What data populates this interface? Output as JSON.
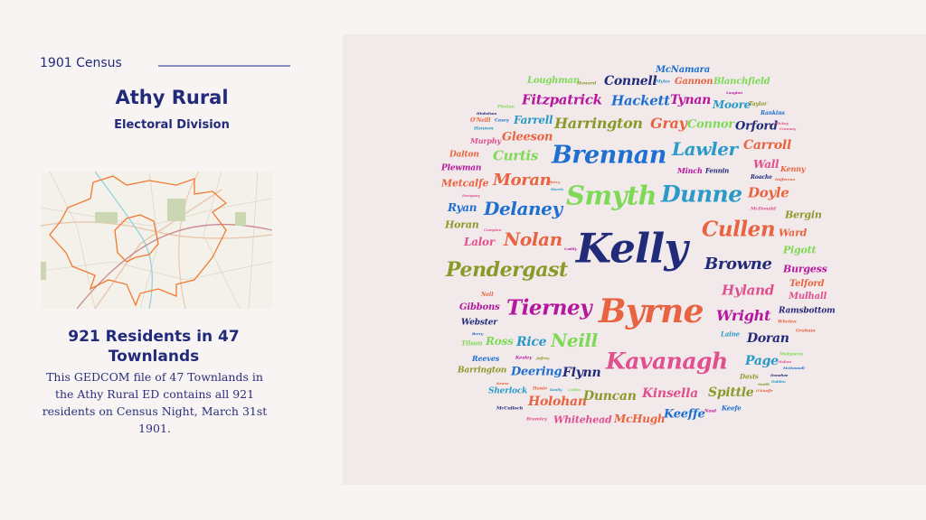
{
  "header": {
    "kicker": "1901 Census",
    "title": "Athy Rural",
    "subtitle": "Electoral Division"
  },
  "map": {
    "icon": "townland-boundary-map",
    "boundary_color": "#f4792f"
  },
  "summary": {
    "heading": "921 Residents in 47 Townlands",
    "description": "This GEDCOM file of  47 Townlands in the Athy Rural ED contains all 921 residents on Census Night, March 31st 1901."
  },
  "colors": {
    "navy": "#222a7a",
    "blue": "#1e6fd0",
    "teal": "#2a9ac8",
    "green": "#7ed957",
    "olive": "#8a9a2a",
    "orange": "#e8633f",
    "pink": "#e0508f",
    "magenta": "#b5179e",
    "background": "#f2eaea"
  },
  "word_cloud": [
    {
      "text": "McNamara",
      "color": "#1e6fd0"
    },
    {
      "text": "Loughman",
      "color": "#7ed957"
    },
    {
      "text": "Howard",
      "color": "#8a9a2a"
    },
    {
      "text": "Connell",
      "color": "#222a7a"
    },
    {
      "text": "Mylas",
      "color": "#2a9ac8"
    },
    {
      "text": "Gannon",
      "color": "#e8633f"
    },
    {
      "text": "Blanchfield",
      "color": "#7ed957"
    },
    {
      "text": "Fitzpatrick",
      "color": "#b5179e"
    },
    {
      "text": "Hackett",
      "color": "#1e6fd0"
    },
    {
      "text": "Tynan",
      "color": "#b5179e"
    },
    {
      "text": "Langton",
      "color": "#b5179e"
    },
    {
      "text": "Moore",
      "color": "#2a9ac8"
    },
    {
      "text": "Taylor",
      "color": "#8a9a2a"
    },
    {
      "text": "Phelan",
      "color": "#7ed957"
    },
    {
      "text": "Hinkelson",
      "color": "#222a7a"
    },
    {
      "text": "Rankins",
      "color": "#1e6fd0"
    },
    {
      "text": "O'Neill",
      "color": "#e8633f"
    },
    {
      "text": "Casey",
      "color": "#1e6fd0"
    },
    {
      "text": "Farrell",
      "color": "#2a9ac8"
    },
    {
      "text": "Harrington",
      "color": "#8a9a2a"
    },
    {
      "text": "Gray",
      "color": "#e8633f"
    },
    {
      "text": "Connor",
      "color": "#7ed957"
    },
    {
      "text": "Orford",
      "color": "#222a7a"
    },
    {
      "text": "Hickey",
      "color": "#e0508f"
    },
    {
      "text": "Cranney",
      "color": "#e0508f"
    },
    {
      "text": "Hannon",
      "color": "#2a9ac8"
    },
    {
      "text": "Murphy",
      "color": "#e0508f"
    },
    {
      "text": "Gleeson",
      "color": "#e8633f"
    },
    {
      "text": "Brennan",
      "color": "#1e6fd0"
    },
    {
      "text": "Lawler",
      "color": "#2a9ac8"
    },
    {
      "text": "Carroll",
      "color": "#e8633f"
    },
    {
      "text": "Dalton",
      "color": "#e8633f"
    },
    {
      "text": "Curtis",
      "color": "#7ed957"
    },
    {
      "text": "Plewman",
      "color": "#b5179e"
    },
    {
      "text": "Minch",
      "color": "#b5179e"
    },
    {
      "text": "Fennin",
      "color": "#222a7a"
    },
    {
      "text": "Wall",
      "color": "#e0508f"
    },
    {
      "text": "Kenny",
      "color": "#e8633f"
    },
    {
      "text": "Roache",
      "color": "#222a7a"
    },
    {
      "text": "Heffernan",
      "color": "#e8633f"
    },
    {
      "text": "Metcalfe",
      "color": "#e8633f"
    },
    {
      "text": "Moran",
      "color": "#e8633f"
    },
    {
      "text": "Barry",
      "color": "#e8633f"
    },
    {
      "text": "Harris",
      "color": "#2a9ac8"
    },
    {
      "text": "Smyth",
      "color": "#7ed957"
    },
    {
      "text": "Dunne",
      "color": "#2a9ac8"
    },
    {
      "text": "Doyle",
      "color": "#e8633f"
    },
    {
      "text": "Dempsey",
      "color": "#e0508f"
    },
    {
      "text": "Ryan",
      "color": "#1e6fd0"
    },
    {
      "text": "Delaney",
      "color": "#1e6fd0"
    },
    {
      "text": "McDonald",
      "color": "#e0508f"
    },
    {
      "text": "Bergin",
      "color": "#8a9a2a"
    },
    {
      "text": "Horan",
      "color": "#8a9a2a"
    },
    {
      "text": "Campion",
      "color": "#e0508f"
    },
    {
      "text": "Kelly",
      "color": "#222a7a"
    },
    {
      "text": "Cullen",
      "color": "#e8633f"
    },
    {
      "text": "Ward",
      "color": "#e8633f"
    },
    {
      "text": "Lalor",
      "color": "#e0508f"
    },
    {
      "text": "Nolan",
      "color": "#e8633f"
    },
    {
      "text": "Cuddy",
      "color": "#b5179e"
    },
    {
      "text": "Pigott",
      "color": "#7ed957"
    },
    {
      "text": "Pendergast",
      "color": "#8a9a2a"
    },
    {
      "text": "Browne",
      "color": "#222a7a"
    },
    {
      "text": "Burgess",
      "color": "#b5179e"
    },
    {
      "text": "Telford",
      "color": "#e8633f"
    },
    {
      "text": "Hyland",
      "color": "#e0508f"
    },
    {
      "text": "Mulhall",
      "color": "#e0508f"
    },
    {
      "text": "Neil",
      "color": "#e8633f"
    },
    {
      "text": "Gibbons",
      "color": "#b5179e"
    },
    {
      "text": "Tierney",
      "color": "#b5179e"
    },
    {
      "text": "Byrne",
      "color": "#e8633f"
    },
    {
      "text": "Wright",
      "color": "#b5179e"
    },
    {
      "text": "Ramsbottom",
      "color": "#222a7a"
    },
    {
      "text": "Webster",
      "color": "#222a7a"
    },
    {
      "text": "Whelan",
      "color": "#e8633f"
    },
    {
      "text": "Graham",
      "color": "#e8633f"
    },
    {
      "text": "Barry",
      "color": "#1e6fd0"
    },
    {
      "text": "Laine",
      "color": "#2a9ac8"
    },
    {
      "text": "Doran",
      "color": "#222a7a"
    },
    {
      "text": "Tilson",
      "color": "#7ed957"
    },
    {
      "text": "Ross",
      "color": "#7ed957"
    },
    {
      "text": "Rice",
      "color": "#2a9ac8"
    },
    {
      "text": "Neill",
      "color": "#7ed957"
    },
    {
      "text": "Kavanagh",
      "color": "#e0508f"
    },
    {
      "text": "Molyneux",
      "color": "#7ed957"
    },
    {
      "text": "Reeves",
      "color": "#1e6fd0"
    },
    {
      "text": "Kealey",
      "color": "#b5179e"
    },
    {
      "text": "Jeffrey",
      "color": "#8a9a2a"
    },
    {
      "text": "Page",
      "color": "#2a9ac8"
    },
    {
      "text": "Mahon",
      "color": "#e0508f"
    },
    {
      "text": "McDonnell",
      "color": "#1e6fd0"
    },
    {
      "text": "Barrington",
      "color": "#8a9a2a"
    },
    {
      "text": "Deering",
      "color": "#1e6fd0"
    },
    {
      "text": "Flynn",
      "color": "#222a7a"
    },
    {
      "text": "Davis",
      "color": "#8a9a2a"
    },
    {
      "text": "Donohoe",
      "color": "#222a7a"
    },
    {
      "text": "Dobbin",
      "color": "#2a9ac8"
    },
    {
      "text": "Smith",
      "color": "#8a9a2a"
    },
    {
      "text": "O'Keeffe",
      "color": "#e8633f"
    },
    {
      "text": "Keena",
      "color": "#e8633f"
    },
    {
      "text": "Sherlock",
      "color": "#2a9ac8"
    },
    {
      "text": "Hanie",
      "color": "#e8633f"
    },
    {
      "text": "Keally",
      "color": "#2a9ac8"
    },
    {
      "text": "Cullen",
      "color": "#7ed957"
    },
    {
      "text": "Holohan",
      "color": "#e8633f"
    },
    {
      "text": "Duncan",
      "color": "#8a9a2a"
    },
    {
      "text": "Kinsella",
      "color": "#e0508f"
    },
    {
      "text": "Spittle",
      "color": "#8a9a2a"
    },
    {
      "text": "McCulloch",
      "color": "#222a7a"
    },
    {
      "text": "Keeffe",
      "color": "#1e6fd0"
    },
    {
      "text": "Naul",
      "color": "#b5179e"
    },
    {
      "text": "Keefe",
      "color": "#1e6fd0"
    },
    {
      "text": "Bramley",
      "color": "#e0508f"
    },
    {
      "text": "Whitehead",
      "color": "#e0508f"
    },
    {
      "text": "McHugh",
      "color": "#e8633f"
    }
  ]
}
